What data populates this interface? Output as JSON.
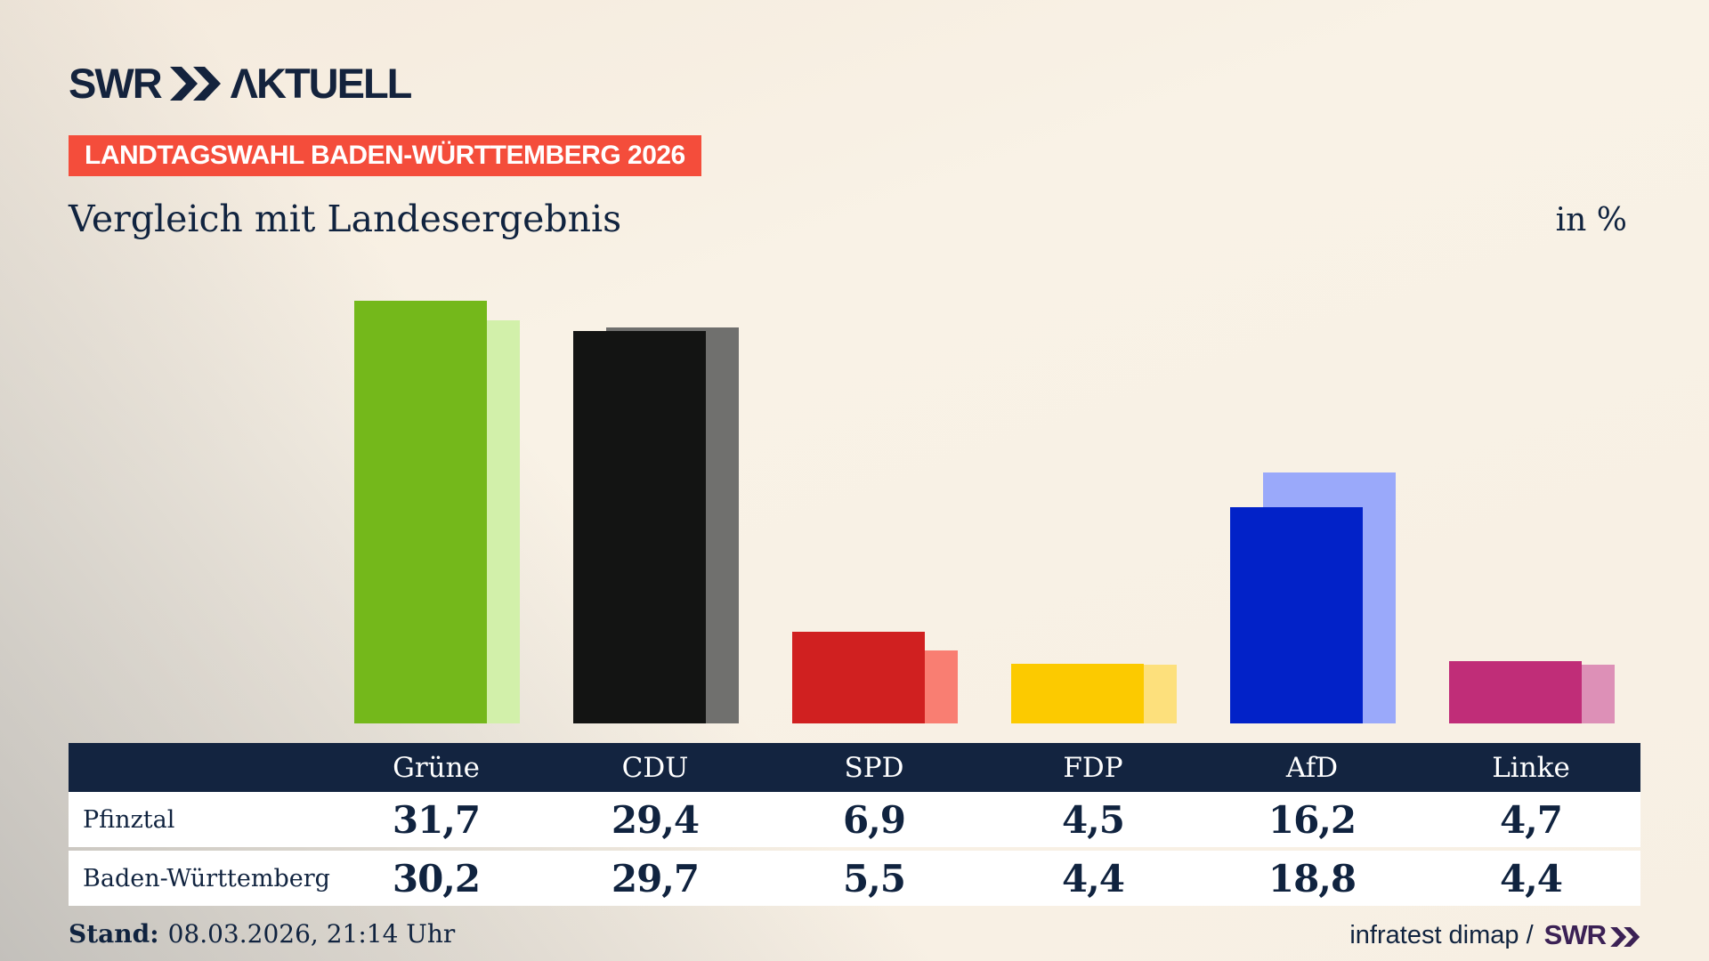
{
  "brand": {
    "logo_text_swr": "SWR",
    "logo_text_aktuell": "ΛKTUELL"
  },
  "badge": {
    "label": "LANDTAGSWAHL BADEN-WÜRTTEMBERG 2026",
    "bg_color": "#f44d3b",
    "text_color": "#ffffff"
  },
  "title": "Vergleich mit Landesergebnis",
  "unit_label": "in %",
  "chart_data": {
    "type": "bar",
    "categories": [
      "Grüne",
      "CDU",
      "SPD",
      "FDP",
      "AfD",
      "Linke"
    ],
    "series": [
      {
        "name": "Pfinztal",
        "values": [
          31.7,
          29.4,
          6.9,
          4.5,
          16.2,
          4.7
        ],
        "colors": [
          "#74b81b",
          "#131413",
          "#d02020",
          "#fcca00",
          "#0222c8",
          "#c02d78"
        ]
      },
      {
        "name": "Baden-Württemberg",
        "values": [
          30.2,
          29.7,
          5.5,
          4.4,
          18.8,
          4.4
        ],
        "colors": [
          "#d2f0aa",
          "#70706e",
          "#f97e72",
          "#fde07c",
          "#9aa9fa",
          "#dd90b7"
        ]
      }
    ],
    "title": "Vergleich mit Landesergebnis",
    "unit": "in %",
    "ylim": [
      0,
      33
    ],
    "grid": false,
    "legend_position": "table-below-chart"
  },
  "table": {
    "columns": [
      "Grüne",
      "CDU",
      "SPD",
      "FDP",
      "AfD",
      "Linke"
    ],
    "rows": [
      {
        "label": "Pfinztal",
        "values": [
          "31,7",
          "29,4",
          "6,9",
          "4,5",
          "16,2",
          "4,7"
        ]
      },
      {
        "label": "Baden-Württemberg",
        "values": [
          "30,2",
          "29,7",
          "5,5",
          "4,4",
          "18,8",
          "4,4"
        ]
      }
    ]
  },
  "footer": {
    "stand_label": "Stand:",
    "stand_value": "08.03.2026, 21:14 Uhr",
    "source_text": "infratest dimap /",
    "source_logo": "SWR"
  },
  "colors": {
    "text_navy": "#10233f",
    "table_header_bg": "#132440",
    "badge_red": "#f44d3b",
    "swr_purple": "#3b2155",
    "background_cream": "#f8f0e4",
    "background_gray": "#c3c0bb"
  }
}
